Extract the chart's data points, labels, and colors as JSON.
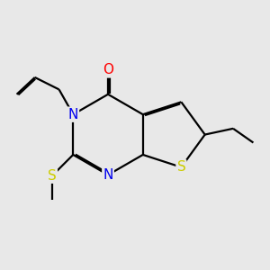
{
  "bg_color": "#e8e8e8",
  "atom_colors": {
    "N": "#0000ee",
    "O": "#ff0000",
    "S": "#cccc00",
    "C": "#000000"
  },
  "bond_color": "#000000",
  "font_size": 11,
  "lw": 1.6
}
